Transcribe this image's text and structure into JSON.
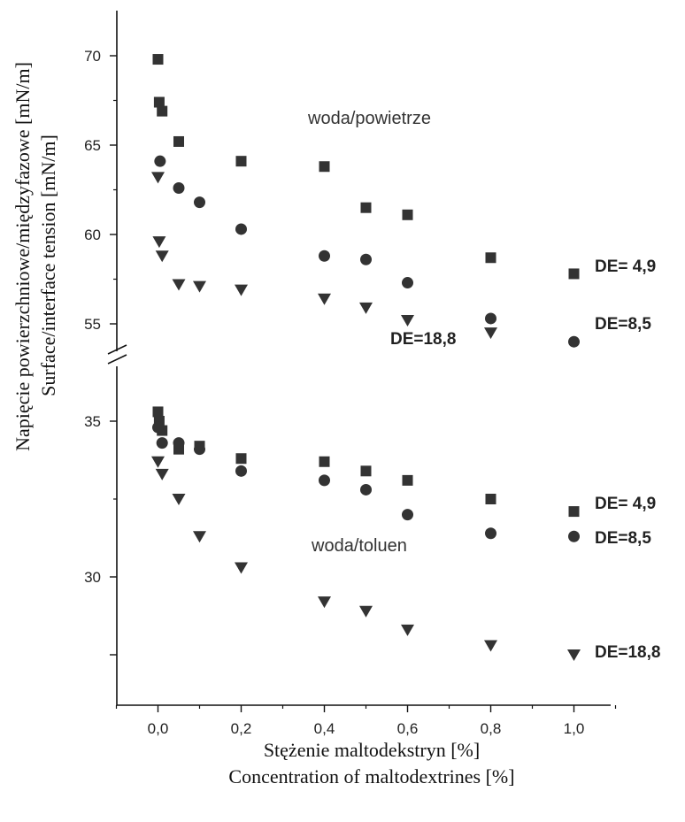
{
  "chart_data": {
    "type": "scatter",
    "xlabel": [
      "Stężenie maltodekstryn [%]",
      "Concentration of maltodextrines [%]"
    ],
    "ylabel": [
      "Napięcie powierzchniowe/międzyfazowe [mN/m]",
      "Surface/interface tension [mN/m]"
    ],
    "x_ticks": [
      "0,0",
      "0,2",
      "0,4",
      "0,6",
      "0,8",
      "1,0"
    ],
    "x_tick_values": [
      0,
      0.2,
      0.4,
      0.6,
      0.8,
      1.0
    ],
    "xlim": [
      -0.2,
      1.2
    ],
    "y_axis_break": true,
    "panels": [
      {
        "label": "woda/powietrze",
        "ylim": [
          54,
          72
        ],
        "y_ticks": [
          {
            "v": 55,
            "l": "55"
          },
          {
            "v": 60,
            "l": "60"
          },
          {
            "v": 65,
            "l": "65"
          },
          {
            "v": 70,
            "l": "70"
          }
        ],
        "series": [
          {
            "name": "DE= 4,9",
            "marker": "square",
            "points": [
              [
                0,
                69.8
              ],
              [
                0.003,
                67.4
              ],
              [
                0.01,
                66.9
              ],
              [
                0.05,
                65.2
              ],
              [
                0.2,
                64.1
              ],
              [
                0.4,
                63.8
              ],
              [
                0.5,
                61.5
              ],
              [
                0.6,
                61.1
              ],
              [
                0.8,
                58.7
              ],
              [
                1.0,
                57.8
              ]
            ]
          },
          {
            "name": "DE=8,5",
            "marker": "circle",
            "points": [
              [
                0.005,
                64.1
              ],
              [
                0.05,
                62.6
              ],
              [
                0.1,
                61.8
              ],
              [
                0.2,
                60.3
              ],
              [
                0.4,
                58.8
              ],
              [
                0.5,
                58.6
              ],
              [
                0.6,
                57.3
              ],
              [
                0.8,
                55.3
              ],
              [
                1.0,
                54.0
              ]
            ]
          },
          {
            "name": "DE=18,8",
            "marker": "triangle-down",
            "points": [
              [
                0,
                63.2
              ],
              [
                0.003,
                59.6
              ],
              [
                0.01,
                58.8
              ],
              [
                0.05,
                57.2
              ],
              [
                0.1,
                57.1
              ],
              [
                0.2,
                56.9
              ],
              [
                0.4,
                56.4
              ],
              [
                0.5,
                55.9
              ],
              [
                0.6,
                55.2
              ],
              [
                0.8,
                54.5
              ]
            ]
          }
        ]
      },
      {
        "label": "woda/toluen",
        "ylim": [
          27,
          37
        ],
        "y_ticks": [
          {
            "v": 35,
            "l": "35"
          },
          {
            "v": 30,
            "l": "30"
          },
          {
            "v": 27.5,
            "l": ""
          }
        ],
        "series": [
          {
            "name": "DE= 4,9",
            "marker": "square",
            "points": [
              [
                0,
                35.3
              ],
              [
                0.003,
                35.0
              ],
              [
                0.01,
                34.7
              ],
              [
                0.05,
                34.1
              ],
              [
                0.1,
                34.2
              ],
              [
                0.2,
                33.8
              ],
              [
                0.4,
                33.7
              ],
              [
                0.5,
                33.4
              ],
              [
                0.6,
                33.1
              ],
              [
                0.8,
                32.5
              ],
              [
                1.0,
                32.1
              ]
            ]
          },
          {
            "name": "DE=8,5",
            "marker": "circle",
            "points": [
              [
                0,
                34.8
              ],
              [
                0.01,
                34.3
              ],
              [
                0.05,
                34.3
              ],
              [
                0.1,
                34.1
              ],
              [
                0.2,
                33.4
              ],
              [
                0.4,
                33.1
              ],
              [
                0.5,
                32.8
              ],
              [
                0.6,
                32.0
              ],
              [
                0.8,
                31.4
              ],
              [
                1.0,
                31.3
              ]
            ]
          },
          {
            "name": "DE=18,8",
            "marker": "triangle-down",
            "points": [
              [
                0,
                33.7
              ],
              [
                0.01,
                33.3
              ],
              [
                0.05,
                32.5
              ],
              [
                0.1,
                31.3
              ],
              [
                0.2,
                30.3
              ],
              [
                0.4,
                29.2
              ],
              [
                0.5,
                28.9
              ],
              [
                0.6,
                28.3
              ],
              [
                0.8,
                27.8
              ],
              [
                1.0,
                27.5
              ]
            ]
          }
        ]
      }
    ]
  }
}
